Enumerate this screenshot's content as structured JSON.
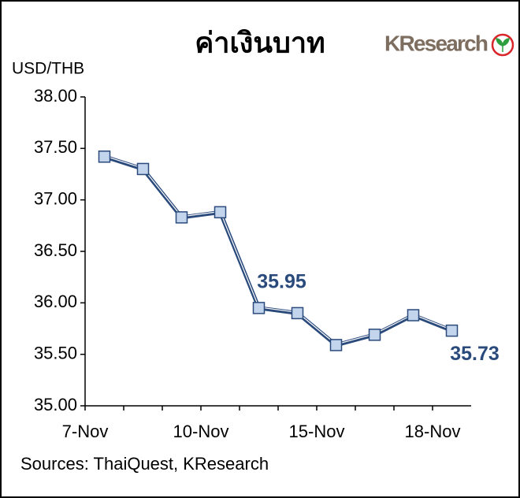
{
  "chart_data": {
    "type": "line",
    "title": "ค่าเงินบาท",
    "logo": "KResearch",
    "y_label": "USD/THB",
    "source": "Sources: ThaiQuest, KResearch",
    "categories": [
      "7-Nov",
      null,
      null,
      "10-Nov",
      null,
      null,
      "15-Nov",
      null,
      null,
      "18-Nov"
    ],
    "values": [
      37.42,
      37.3,
      36.83,
      36.88,
      35.95,
      35.9,
      35.59,
      35.69,
      35.88,
      35.73
    ],
    "value_labels": [
      null,
      null,
      null,
      null,
      "35.95",
      null,
      null,
      null,
      null,
      "35.73"
    ],
    "color": "#2a4a7c",
    "marker_color": "#c3d5ec",
    "ylim": [
      35,
      38
    ],
    "yticks": [
      {
        "value": 35,
        "label": "35.00"
      },
      {
        "value": 35.5,
        "label": "35.50"
      },
      {
        "value": 36,
        "label": "36.00"
      },
      {
        "value": 36.5,
        "label": "36.50"
      },
      {
        "value": 37,
        "label": "37.00"
      },
      {
        "value": 37.5,
        "label": "37.50"
      },
      {
        "value": 38,
        "label": "38.00"
      }
    ],
    "grid": false
  }
}
